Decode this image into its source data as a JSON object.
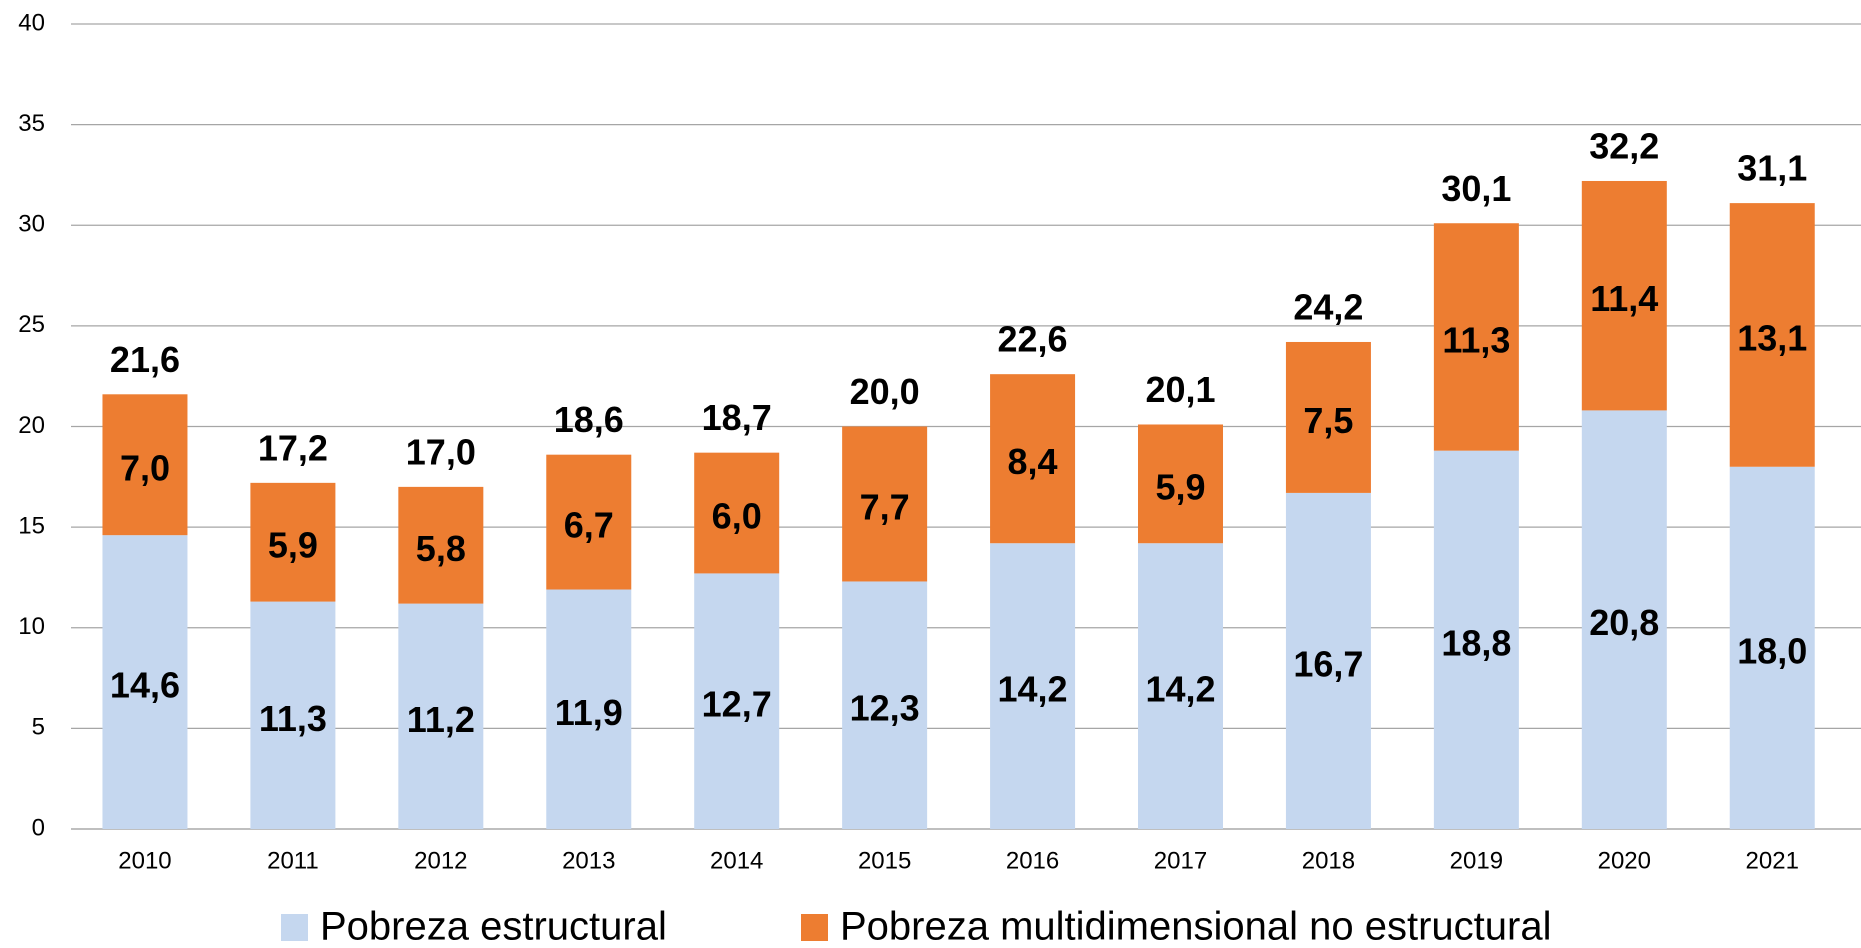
{
  "chart_data": {
    "type": "stacked_bar",
    "categories": [
      "2010",
      "2011",
      "2012",
      "2013",
      "2014",
      "2015",
      "2016",
      "2017",
      "2018",
      "2019",
      "2020",
      "2021"
    ],
    "series": [
      {
        "name": "Pobreza estructural",
        "color": "#c5d7ef",
        "values": [
          14.6,
          11.3,
          11.2,
          11.9,
          12.7,
          12.3,
          14.2,
          14.2,
          16.7,
          18.8,
          20.8,
          18.0
        ],
        "value_labels": [
          "14,6",
          "11,3",
          "11,2",
          "11,9",
          "12,7",
          "12,3",
          "14,2",
          "14,2",
          "16,7",
          "18,8",
          "20,8",
          "18,0"
        ]
      },
      {
        "name": "Pobreza multidimensional no estructural",
        "color": "#ed7d31",
        "values": [
          7.0,
          5.9,
          5.8,
          6.7,
          6.0,
          7.7,
          8.4,
          5.9,
          7.5,
          11.3,
          11.4,
          13.1
        ],
        "value_labels": [
          "7,0",
          "5,9",
          "5,8",
          "6,7",
          "6,0",
          "7,7",
          "8,4",
          "5,9",
          "7,5",
          "11,3",
          "11,4",
          "13,1"
        ]
      }
    ],
    "totals": [
      21.6,
      17.2,
      17.0,
      18.6,
      18.7,
      20.0,
      22.6,
      20.1,
      24.2,
      30.1,
      32.2,
      31.1
    ],
    "total_labels": [
      "21,6",
      "17,2",
      "17,0",
      "18,6",
      "18,7",
      "20,0",
      "22,6",
      "20,1",
      "24,2",
      "30,1",
      "32,2",
      "31,1"
    ],
    "ylim": [
      0,
      40
    ],
    "yticks": [
      0,
      5,
      10,
      15,
      20,
      25,
      30,
      35,
      40
    ],
    "grid": true,
    "legend": "bottom"
  }
}
